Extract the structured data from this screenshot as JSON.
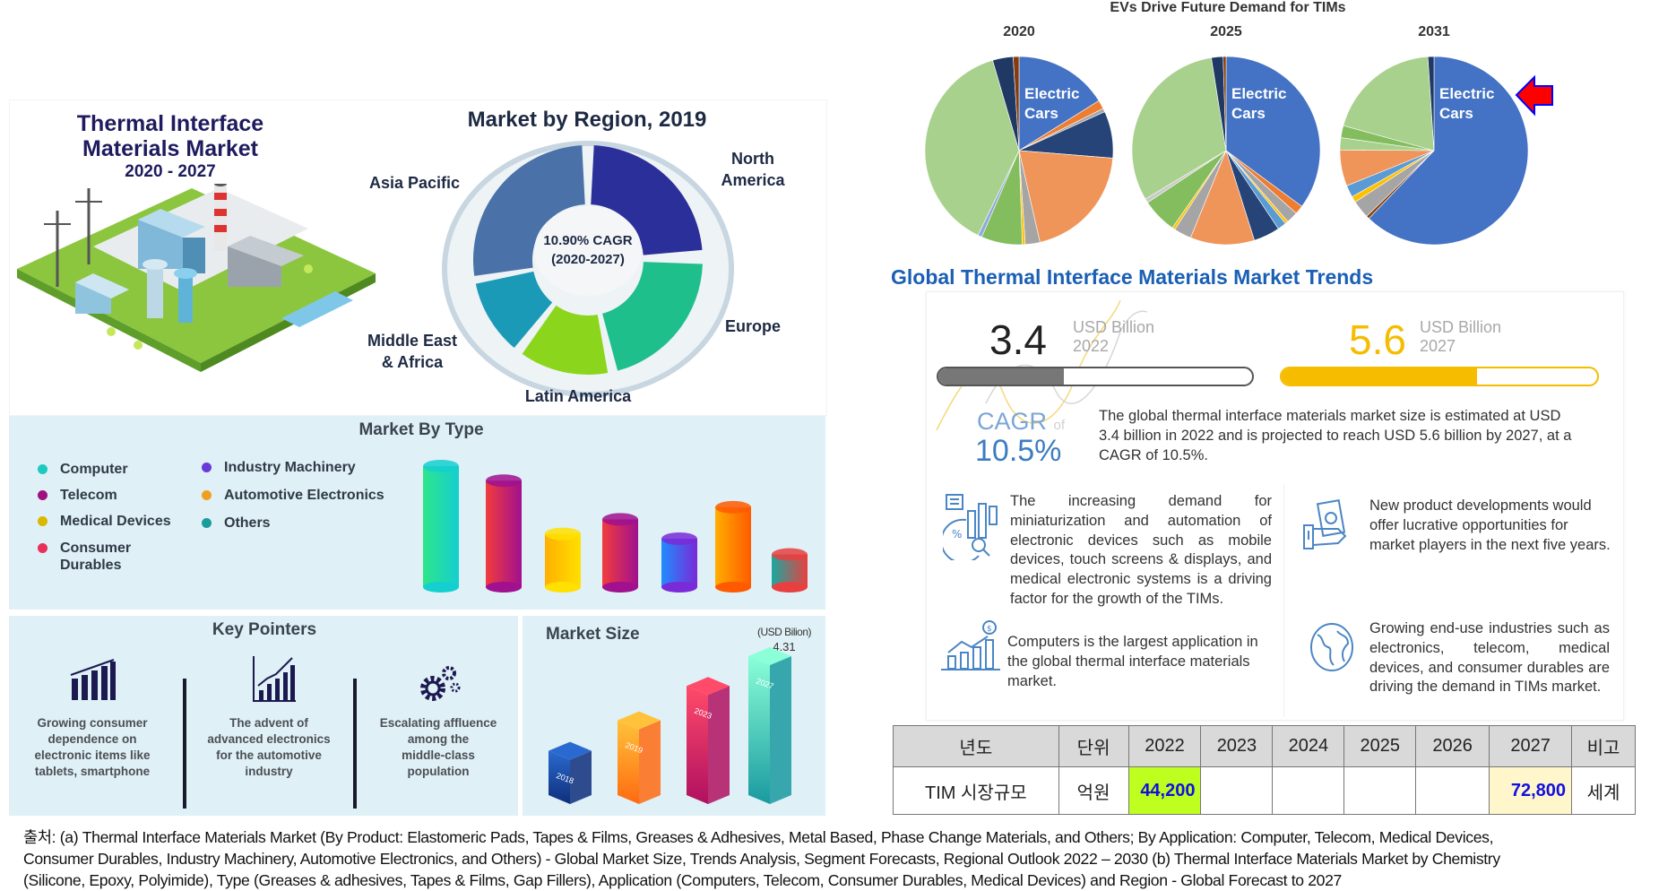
{
  "left_infographic": {
    "title_lines": [
      "Thermal Interface",
      "Materials Market"
    ],
    "years": "2020 - 2027",
    "region": {
      "title": "Market by Region, 2019",
      "cagr_lines": [
        "10.90% CAGR",
        "(2020-2027)"
      ],
      "segments": [
        {
          "name": "North America",
          "lines": [
            "North",
            "America"
          ],
          "color": "#2b2f9a"
        },
        {
          "name": "Europe",
          "lines": [
            "Europe"
          ],
          "color": "#1fbf8c"
        },
        {
          "name": "Latin America",
          "lines": [
            "Latin America"
          ],
          "color": "#8bd61c"
        },
        {
          "name": "Middle East & Africa",
          "lines": [
            "Middle East",
            "& Africa"
          ],
          "color": "#1b9ab8"
        },
        {
          "name": "Asia Pacific",
          "lines": [
            "Asia Pacific"
          ],
          "color": "#4a72a8"
        }
      ]
    },
    "market_by_type": {
      "title": "Market By Type",
      "legend": [
        {
          "label": "Computer",
          "color": "#1ec9c0"
        },
        {
          "label": "Telecom",
          "color": "#a0107f"
        },
        {
          "label": "Medical Devices",
          "color": "#d8b800"
        },
        {
          "label": "Consumer Durables",
          "color": "#e8305a"
        },
        {
          "label": "Industry Machinery",
          "color": "#6a3ad8"
        },
        {
          "label": "Automotive Electronics",
          "color": "#f0a020"
        },
        {
          "label": "Others",
          "color": "#1a9c9c"
        }
      ]
    },
    "key_pointers": {
      "title": "Key Pointers",
      "items": [
        {
          "icon": "bar-chart-icon",
          "lines": [
            "Growing consumer",
            "dependence on",
            "electronic items like",
            "tablets, smartphone"
          ]
        },
        {
          "icon": "line-chart-icon",
          "lines": [
            "The advent of",
            "advanced electronics",
            "for the automotive",
            "industry"
          ]
        },
        {
          "icon": "gears-icon",
          "lines": [
            "Escalating affluence",
            "among the",
            "middle-class",
            "population"
          ]
        }
      ]
    },
    "market_size": {
      "title": "Market Size",
      "unit": "(USD Bilion)",
      "top_value": "4.31"
    }
  },
  "right": {
    "pie_title": "EVs Drive Future Demand for TIMs",
    "trends_heading": "Global Thermal Interface Materials Market Trends",
    "value_2022": {
      "number": "3.4",
      "unit": "USD Billion",
      "year": "2022",
      "fill_percent": 40,
      "color": "#777777"
    },
    "value_2027": {
      "number": "5.6",
      "unit": "USD Billion",
      "year": "2027",
      "fill_percent": 62,
      "color": "#f5bc00"
    },
    "cagr": {
      "label": "CAGR",
      "of": "of",
      "value": "10.5%"
    },
    "summary": "The global thermal interface materials market size is estimated at USD 3.4 billion in 2022 and is projected to reach USD 5.6 billion by 2027, at a CAGR of 10.5%.",
    "points": [
      {
        "icon": "analytics-icon",
        "text": "The increasing demand for miniaturization and automation of electronic devices such as mobile devices, touch screens & displays, and medical electronic systems is a driving factor for the growth of the TIMs."
      },
      {
        "icon": "growth-chart-icon",
        "text": "Computers is the largest application in the global thermal interface materials market."
      },
      {
        "icon": "money-hand-icon",
        "text": "New product developments would offer lucrative opportunities for market players in the next five years."
      },
      {
        "icon": "globe-icon",
        "text": "Growing end-use industries such as electronics, telecom, medical devices, and consumer durables are driving the demand in TIMs market."
      }
    ]
  },
  "table": {
    "header": [
      "년도",
      "단위",
      "2022",
      "2023",
      "2024",
      "2025",
      "2026",
      "2027",
      "비고"
    ],
    "row": [
      "TIM 시장규모",
      "억원",
      "44,200",
      "",
      "",
      "",
      "",
      "72,800",
      "세계"
    ],
    "highlight_2022": "#bfff1f",
    "highlight_2027": "#fff6cc",
    "value_color": "#1010e0"
  },
  "source_lines": [
    "출처: (a) Thermal Interface Materials Market (By Product: Elastomeric Pads, Tapes & Films, Greases & Adhesives, Metal Based, Phase Change Materials, and Others; By Application: Computer, Telecom, Medical Devices,",
    "Consumer Durables, Industry Machinery, Automotive Electronics, and Others) - Global Market Size, Trends Analysis, Segment Forecasts, Regional Outlook 2022 – 2030 (b) Thermal Interface Materials Market by Chemistry",
    "(Silicone, Epoxy, Polyimide), Type (Greases & adhesives, Tapes & Films, Gap Fillers), Application (Computers, Telecom, Consumer Durables, Medical Devices) and Region - Global Forecast to 2027"
  ],
  "chart_data": [
    {
      "type": "pie",
      "title": "2020",
      "slices": [
        {
          "label": "Electric Cars",
          "value": 16,
          "color": "#4472c4"
        },
        {
          "value": 1.5,
          "color": "#ed7d31"
        },
        {
          "value": 0.6,
          "color": "#a5a5a5"
        },
        {
          "value": 8,
          "color": "#264478"
        },
        {
          "value": 20,
          "color": "#f0955a"
        },
        {
          "value": 2.5,
          "color": "#a5a5a5"
        },
        {
          "value": 0.5,
          "color": "#ffc000"
        },
        {
          "value": 7,
          "color": "#84bd5e"
        },
        {
          "value": 0.7,
          "color": "#8faadc"
        },
        {
          "value": 38,
          "color": "#a9d18e"
        },
        {
          "value": 3.5,
          "color": "#1f3864"
        },
        {
          "value": 1,
          "color": "#843c0c"
        }
      ]
    },
    {
      "type": "pie",
      "title": "2025",
      "slices": [
        {
          "label": "Electric Cars",
          "value": 35,
          "color": "#4472c4"
        },
        {
          "value": 1.5,
          "color": "#ed7d31"
        },
        {
          "value": 2,
          "color": "#a5a5a5"
        },
        {
          "value": 0.5,
          "color": "#ffc000"
        },
        {
          "value": 1.5,
          "color": "#5b9bd5"
        },
        {
          "value": 4.5,
          "color": "#264478"
        },
        {
          "value": 11,
          "color": "#f0955a"
        },
        {
          "value": 3,
          "color": "#a5a5a5"
        },
        {
          "value": 0.5,
          "color": "#ffc000"
        },
        {
          "value": 6,
          "color": "#84bd5e"
        },
        {
          "value": 0.7,
          "color": "#c9c9c9"
        },
        {
          "value": 31,
          "color": "#a9d18e"
        },
        {
          "value": 2,
          "color": "#1f3864"
        },
        {
          "value": 0.5,
          "color": "#843c0c"
        }
      ]
    },
    {
      "type": "pie",
      "title": "2031",
      "slices": [
        {
          "label": "Electric Cars",
          "value": 60,
          "color": "#4472c4"
        },
        {
          "value": 0.5,
          "color": "#843c0c"
        },
        {
          "value": 3,
          "color": "#a5a5a5"
        },
        {
          "value": 1,
          "color": "#ffc000"
        },
        {
          "value": 2,
          "color": "#5b9bd5"
        },
        {
          "value": 6,
          "color": "#f0955a"
        },
        {
          "value": 2,
          "color": "#a9d18e"
        },
        {
          "value": 2,
          "color": "#84bd5e"
        },
        {
          "value": 19,
          "color": "#a9d18e"
        },
        {
          "value": 1,
          "color": "#1f3864"
        }
      ]
    },
    {
      "type": "bar",
      "title": "Market By Type",
      "categories": [
        "Computer",
        "Telecom",
        "Medical Devices",
        "Consumer Durables",
        "Industry Machinery",
        "Automotive Electronics",
        "Others"
      ],
      "values": [
        100,
        88,
        44,
        56,
        40,
        66,
        27
      ],
      "colors": [
        [
          "#2ee58a",
          "#14cfd0"
        ],
        [
          "#f23c3c",
          "#a0108f"
        ],
        [
          "#ffb000",
          "#ffe000"
        ],
        [
          "#f23c3c",
          "#a0108f"
        ],
        [
          "#1f8cff",
          "#7a2ad8"
        ],
        [
          "#ffae00",
          "#ff5a00"
        ],
        [
          "#1aa8a0",
          "#e84040"
        ]
      ]
    },
    {
      "type": "bar",
      "title": "Market Size",
      "ylabel": "(USD Bilion)",
      "categories": [
        "2018",
        "2019",
        "2023",
        "2027"
      ],
      "values": [
        1.55,
        2.44,
        3.44,
        4.31
      ],
      "colors": [
        [
          "#2a6ad0",
          "#0f2f7a"
        ],
        [
          "#ffc23a",
          "#ff6a10"
        ],
        [
          "#ff4a6a",
          "#b01060"
        ],
        [
          "#8affd8",
          "#1a9aa0"
        ]
      ]
    }
  ]
}
